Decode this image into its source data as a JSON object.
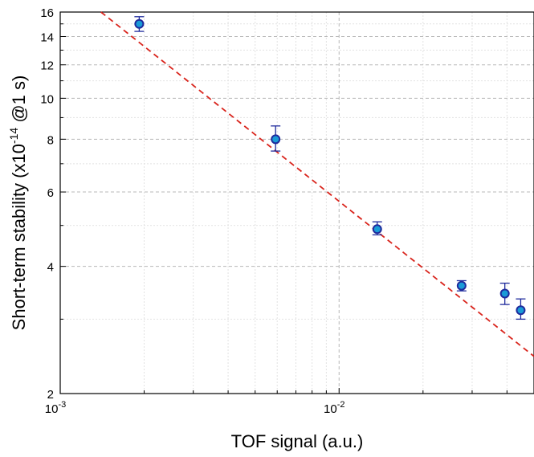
{
  "chart_data": {
    "type": "scatter",
    "title": "",
    "xlabel": "TOF signal (a.u.)",
    "ylabel": "Short-term stability (x10",
    "ylabel_superscript": "-14",
    "ylabel_suffix": " @1 s)",
    "xscale": "log",
    "yscale": "log",
    "xlim": [
      0.001,
      0.05
    ],
    "ylim": [
      2,
      16
    ],
    "x_ticks": [
      {
        "value": 0.001,
        "base": "10",
        "exp": "-3"
      },
      {
        "value": 0.01,
        "base": "10",
        "exp": "-2"
      }
    ],
    "y_ticks": [
      {
        "value": 2,
        "label": "2"
      },
      {
        "value": 4,
        "label": "4"
      },
      {
        "value": 6,
        "label": "6"
      },
      {
        "value": 8,
        "label": "8"
      },
      {
        "value": 10,
        "label": "10"
      },
      {
        "value": 12,
        "label": "12"
      },
      {
        "value": 14,
        "label": "14"
      },
      {
        "value": 16,
        "label": "16"
      }
    ],
    "grid": true,
    "points": [
      {
        "x": 0.00192,
        "y": 15.0,
        "err_low": 14.4,
        "err_high": 15.6
      },
      {
        "x": 0.00592,
        "y": 8.0,
        "err_low": 7.5,
        "err_high": 8.6
      },
      {
        "x": 0.0137,
        "y": 4.9,
        "err_low": 4.75,
        "err_high": 5.1
      },
      {
        "x": 0.0275,
        "y": 3.6,
        "err_low": 3.5,
        "err_high": 3.7
      },
      {
        "x": 0.0393,
        "y": 3.45,
        "err_low": 3.25,
        "err_high": 3.65
      },
      {
        "x": 0.0448,
        "y": 3.15,
        "err_low": 3.0,
        "err_high": 3.35
      }
    ],
    "fit_line": {
      "x": [
        0.0014,
        0.05
      ],
      "y": [
        16.0,
        2.45
      ],
      "style": "dashed"
    },
    "colors": {
      "marker_fill": "#1a9bd7",
      "marker_edge": "#1f2a9c",
      "error_bar": "#1f2a9c",
      "secondary_bar": "#6fe36f",
      "fit_line": "#d9241c"
    }
  }
}
